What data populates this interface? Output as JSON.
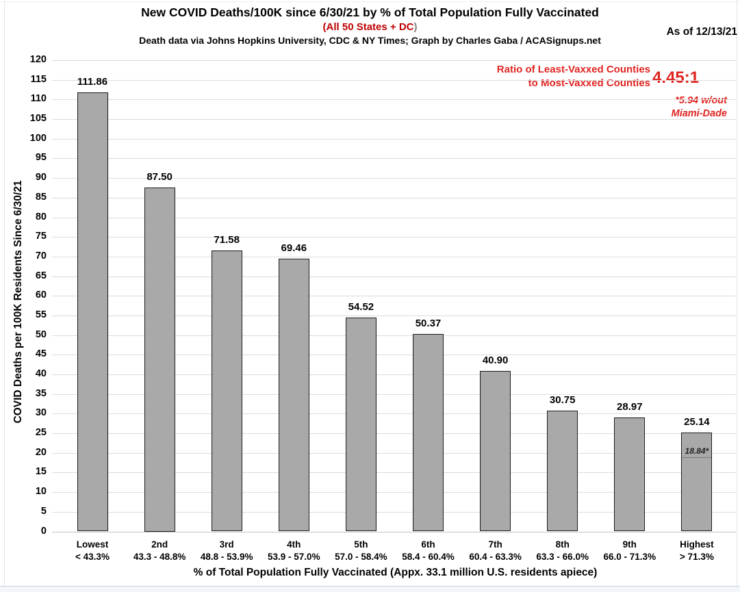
{
  "header": {
    "title": "New COVID Deaths/100K since 6/30/21 by % of Total Population Fully Vaccinated",
    "subtitle_red": "(All 50 States + DC",
    "subtitle_close_paren": ")",
    "credit": "Death data via Johns Hopkins University, CDC & NY Times; Graph by Charles Gaba / ACASignups.net",
    "as_of": "As of 12/13/21"
  },
  "annotation": {
    "ratio_label_line1": "Ratio of Least-Vaxxed Counties",
    "ratio_label_line2": "to Most-Vaxxed Counties",
    "ratio_value": "4.45:1",
    "footnote_line1": "*5.94 w/out",
    "footnote_line2": "Miami-Dade",
    "accent_color": "#e02420"
  },
  "chart_data": {
    "type": "bar",
    "title": "New COVID Deaths/100K since 6/30/21 by % of Total Population Fully Vaccinated",
    "categories": [
      "Lowest",
      "2nd",
      "3rd",
      "4th",
      "5th",
      "6th",
      "7th",
      "8th",
      "9th",
      "Highest"
    ],
    "category_ranges": [
      "< 43.3%",
      "43.3 - 48.8%",
      "48.8 - 53.9%",
      "53.9 - 57.0%",
      "57.0 - 58.4%",
      "58.4 - 60.4%",
      "60.4 - 63.3%",
      "63.3 - 66.0%",
      "66.0 - 71.3%",
      "> 71.3%"
    ],
    "values": [
      111.86,
      87.5,
      71.58,
      69.46,
      54.52,
      50.37,
      40.9,
      30.75,
      28.97,
      25.14
    ],
    "value_labels": [
      "111.86",
      "87.50",
      "71.58",
      "69.46",
      "54.52",
      "50.37",
      "40.90",
      "30.75",
      "28.97",
      "25.14"
    ],
    "special_marker": {
      "category_index": 9,
      "value": 18.84,
      "label": "18.84*"
    },
    "xlabel": "% of Total Population Fully Vaccinated (Appx. 33.1 million U.S. residents apiece)",
    "ylabel": "COVID Deaths per 100K Residents Since 6/30/21",
    "ylim": [
      0,
      120
    ],
    "ytick_step": 5,
    "grid": true,
    "legend_position": "none",
    "bar_color": "#a9a9a9",
    "bar_border_color": "#1a1a1a"
  }
}
